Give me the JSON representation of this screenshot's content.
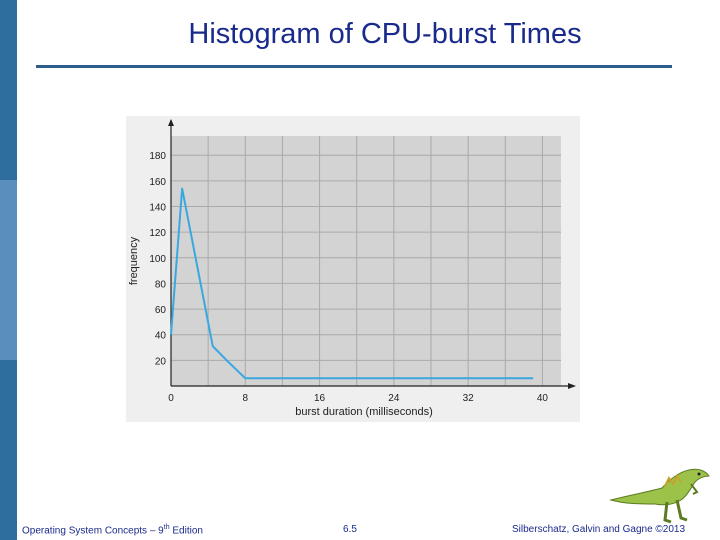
{
  "slide": {
    "title": "Histogram of CPU-burst Times",
    "footer_left_prefix": "Operating System Concepts – 9",
    "footer_left_sup": "th",
    "footer_left_suffix": " Edition",
    "page_number": "6.5",
    "footer_right": "Silberschatz, Galvin and Gagne ©2013",
    "logo_icon": "dinosaur-logo-icon"
  },
  "colors": {
    "title": "#1a2a8c",
    "rule": "#2e5c8c",
    "sidebar": [
      "#2e6e9e",
      "#5a8fbd",
      "#2e6e9e"
    ],
    "plot_bg": "#d3d3d3",
    "grid": "#aaaaaa",
    "line": "#3aa8e0"
  },
  "chart_data": {
    "type": "line",
    "title": "",
    "xlabel": "burst duration (milliseconds)",
    "ylabel": "frequency",
    "xlim": [
      0,
      42
    ],
    "ylim": [
      0,
      195
    ],
    "x_ticks": [
      "0",
      "8",
      "16",
      "24",
      "32",
      "40"
    ],
    "y_ticks": [
      "20",
      "40",
      "60",
      "80",
      "100",
      "120",
      "140",
      "160",
      "180"
    ],
    "grid": true,
    "series": [
      {
        "x": [
          0,
          1.2,
          4.5,
          6,
          8,
          10,
          16,
          24,
          32,
          39
        ],
        "y": [
          40,
          154,
          31,
          20,
          6,
          6,
          6,
          6,
          6,
          6
        ]
      }
    ]
  }
}
